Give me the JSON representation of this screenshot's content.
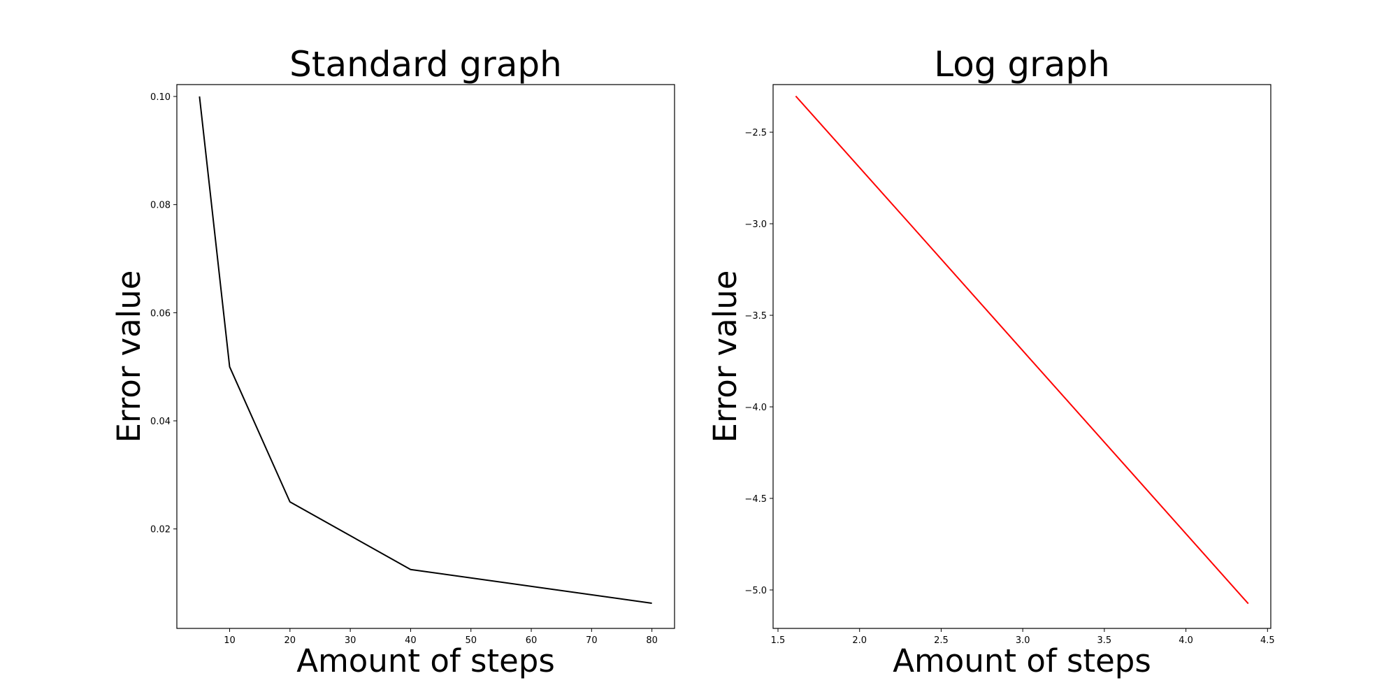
{
  "chart_data": [
    {
      "type": "line",
      "title": "Standard graph",
      "xlabel": "Amount of steps",
      "ylabel": "Error value",
      "xlim": [
        1.25,
        83.75
      ],
      "ylim": [
        0.0016,
        0.1022
      ],
      "xticks": [
        10,
        20,
        30,
        40,
        50,
        60,
        70,
        80
      ],
      "xtick_labels": [
        "10",
        "20",
        "30",
        "40",
        "50",
        "60",
        "70",
        "80"
      ],
      "yticks": [
        0.02,
        0.04,
        0.06,
        0.08,
        0.1
      ],
      "ytick_labels": [
        "0.02",
        "0.04",
        "0.06",
        "0.08",
        "0.10"
      ],
      "grid": false,
      "series": [
        {
          "color": "#000000",
          "x": [
            5,
            10,
            20,
            40,
            80
          ],
          "y": [
            0.1,
            0.05,
            0.025,
            0.0125,
            0.00625
          ]
        }
      ]
    },
    {
      "type": "line",
      "title": "Log graph",
      "xlabel": "Amount of steps",
      "ylabel": "Error value",
      "xlim": [
        1.47,
        4.52
      ],
      "ylim": [
        -5.21,
        -2.24
      ],
      "xticks": [
        1.5,
        2.0,
        2.5,
        3.0,
        3.5,
        4.0,
        4.5
      ],
      "xtick_labels": [
        "1.5",
        "2.0",
        "2.5",
        "3.0",
        "3.5",
        "4.0",
        "4.5"
      ],
      "yticks": [
        -2.5,
        -3.0,
        -3.5,
        -4.0,
        -4.5,
        -5.0
      ],
      "ytick_labels": [
        "−2.5",
        "−3.0",
        "−3.5",
        "−4.0",
        "−4.5",
        "−5.0"
      ],
      "grid": false,
      "series": [
        {
          "color": "#ff0000",
          "x": [
            1.609,
            2.303,
            2.996,
            3.689,
            4.382
          ],
          "y": [
            -2.303,
            -2.996,
            -3.689,
            -4.382,
            -5.075
          ]
        }
      ]
    }
  ]
}
